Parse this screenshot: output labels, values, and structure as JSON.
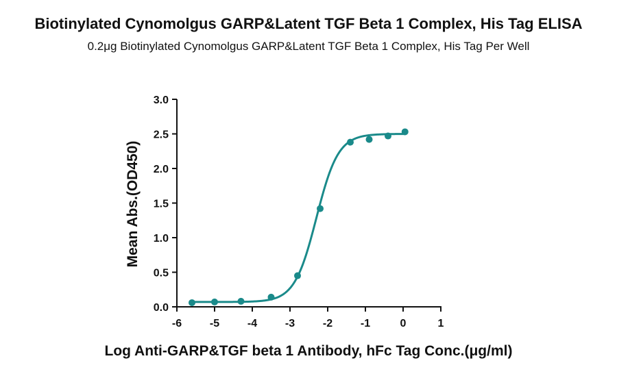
{
  "chart_data": {
    "type": "scatter",
    "title": "Biotinylated Cynomolgus GARP&Latent TGF Beta 1 Complex, His Tag ELISA",
    "subtitle": "0.2μg Biotinylated Cynomolgus GARP&Latent TGF Beta 1 Complex, His Tag Per Well",
    "xlabel": "Log Anti-GARP&TGF beta 1 Antibody, hFc Tag Conc.(μg/ml)",
    "ylabel": "Mean Abs.(OD450)",
    "xlim": [
      -6,
      1
    ],
    "ylim": [
      0,
      3.0
    ],
    "xticks": [
      "-6",
      "-5",
      "-4",
      "-3",
      "-2",
      "-1",
      "0",
      "1"
    ],
    "yticks": [
      "0.0",
      "0.5",
      "1.0",
      "1.5",
      "2.0",
      "2.5",
      "3.0"
    ],
    "grid": false,
    "color": "#1a8a8a",
    "series": [
      {
        "x": [
          -5.6,
          -5.0,
          -4.3,
          -3.5,
          -2.8,
          -2.2,
          -1.4,
          -0.9,
          -0.4,
          0.05
        ],
        "y": [
          0.06,
          0.07,
          0.08,
          0.14,
          0.45,
          1.42,
          2.38,
          2.42,
          2.47,
          2.53
        ]
      }
    ],
    "fit": {
      "model": "4PL",
      "bottom": 0.07,
      "top": 2.5,
      "log_ec50": -2.3,
      "hill": 1.5
    }
  }
}
